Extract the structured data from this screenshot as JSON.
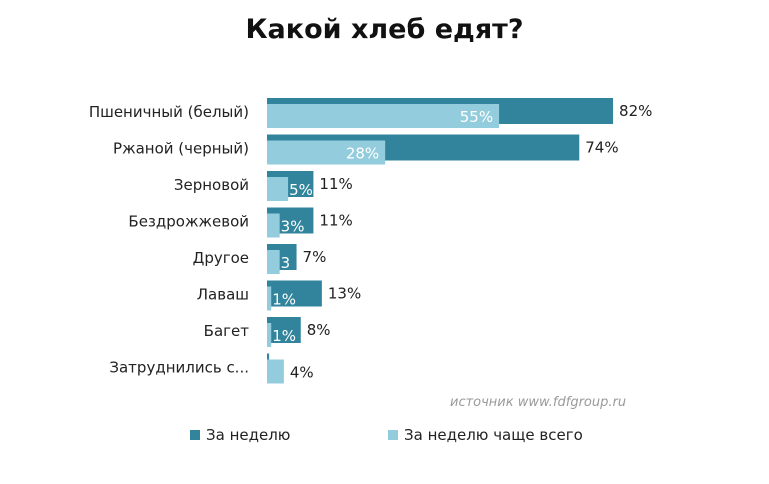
{
  "chart_data": {
    "type": "bar",
    "orientation": "horizontal",
    "title": "Какой хлеб едят?",
    "categories": [
      "Пшеничный (белый)",
      "Ржаной (черный)",
      "Зерновой",
      "Бездрожжевой",
      "Другое",
      "Лаваш",
      "Багет",
      "Затруднились с..."
    ],
    "series": [
      {
        "name": "За неделю",
        "color": "#31849b",
        "values": [
          82,
          74,
          11,
          11,
          7,
          13,
          8,
          0.5
        ],
        "labels": [
          "82%",
          "74%",
          "11%",
          "11%",
          "7%",
          "13%",
          "8%",
          ""
        ]
      },
      {
        "name": "За неделю чаще всего",
        "color": "#93cddd",
        "values": [
          55,
          28,
          5,
          3,
          3,
          1,
          1,
          4
        ],
        "labels": [
          "55%",
          "28%",
          "5%",
          "3%",
          "3",
          "1%",
          "1%",
          "4%"
        ]
      }
    ],
    "xlim": [
      0,
      100
    ],
    "grid": false,
    "legend_position": "bottom",
    "source": "источник  www.fdfgroup.ru"
  }
}
